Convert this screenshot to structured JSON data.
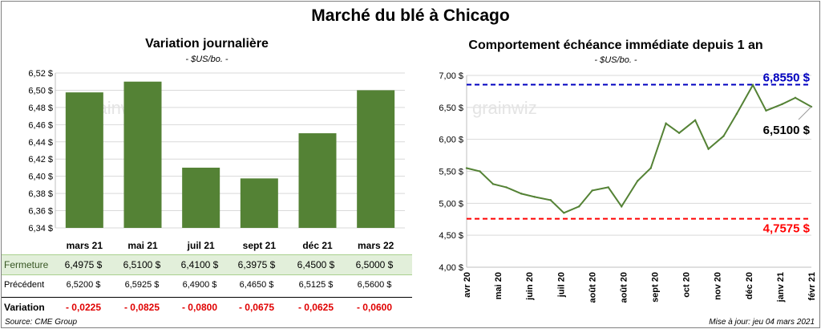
{
  "title": "Marché du blé à Chicago",
  "source": "Source: CME Group",
  "updated": "Mise à jour: jeu 04 mars 2021",
  "watermark": "grainwiz",
  "colors": {
    "bar": "#548235",
    "line": "#548235",
    "max_line": "#0000c0",
    "min_line": "#ff0000",
    "table_highlight": "#e2efda"
  },
  "chart_data": [
    {
      "type": "bar",
      "title": "Variation  journalière",
      "subtitle": "- $US/bo. -",
      "categories": [
        "mars 21",
        "mai 21",
        "juil 21",
        "sept 21",
        "déc 21",
        "mars 22"
      ],
      "values": [
        6.4975,
        6.51,
        6.41,
        6.3975,
        6.45,
        6.5
      ],
      "ylim": [
        6.34,
        6.52
      ],
      "yticks": [
        "6,34 $",
        "6,36 $",
        "6,38 $",
        "6,40 $",
        "6,42 $",
        "6,44 $",
        "6,46 $",
        "6,48 $",
        "6,50 $",
        "6,52 $"
      ],
      "grid": true
    },
    {
      "type": "line",
      "title": "Comportement  échéance immédiate depuis 1 an",
      "subtitle": "- $US/bo. -",
      "x": [
        "2020-03-04",
        "2020-03-18",
        "2020-04-01",
        "2020-04-15",
        "2020-05-01",
        "2020-05-15",
        "2020-06-01",
        "2020-06-15",
        "2020-07-01",
        "2020-07-15",
        "2020-08-01",
        "2020-08-15",
        "2020-09-01",
        "2020-09-15",
        "2020-10-01",
        "2020-10-15",
        "2020-11-01",
        "2020-11-15",
        "2020-12-01",
        "2020-12-15",
        "2021-01-01",
        "2021-01-15",
        "2021-02-01",
        "2021-02-15",
        "2021-03-04"
      ],
      "y": [
        5.55,
        5.5,
        5.3,
        5.25,
        5.15,
        5.1,
        5.05,
        4.85,
        4.95,
        5.2,
        5.25,
        4.95,
        5.35,
        5.55,
        6.25,
        6.1,
        6.3,
        5.85,
        6.05,
        6.4,
        6.85,
        6.45,
        6.55,
        6.65,
        6.51
      ],
      "xticks": [
        "avr 20",
        "mai 20",
        "juin 20",
        "juil 20",
        "août 20",
        "août 20",
        "sept 20",
        "oct 20",
        "nov 20",
        "déc 20",
        "janv 21",
        "févr 21"
      ],
      "ylim": [
        4.0,
        7.0
      ],
      "yticks": [
        "4,00 $",
        "4,50 $",
        "5,00 $",
        "5,50 $",
        "6,00 $",
        "6,50 $",
        "7,00 $"
      ],
      "max_value": 6.855,
      "max_label": "6,8550 $",
      "min_value": 4.7575,
      "min_label": "4,7575 $",
      "last_label": "6,5100 $",
      "grid": true
    }
  ],
  "table": {
    "headers": [
      "mars 21",
      "mai 21",
      "juil 21",
      "sept 21",
      "déc 21",
      "mars 22"
    ],
    "rows": [
      {
        "label": "Fermeture",
        "values": [
          "6,4975  $",
          "6,5100  $",
          "6,4100  $",
          "6,3975  $",
          "6,4500  $",
          "6,5000  $"
        ]
      },
      {
        "label": "Précédent",
        "values": [
          "6,5200  $",
          "6,5925  $",
          "6,4900  $",
          "6,4650  $",
          "6,5125  $",
          "6,5600  $"
        ]
      },
      {
        "label": "Variation",
        "values": [
          "- 0,0225",
          "- 0,0825",
          "- 0,0800",
          "- 0,0675",
          "- 0,0625",
          "- 0,0600"
        ]
      }
    ]
  }
}
